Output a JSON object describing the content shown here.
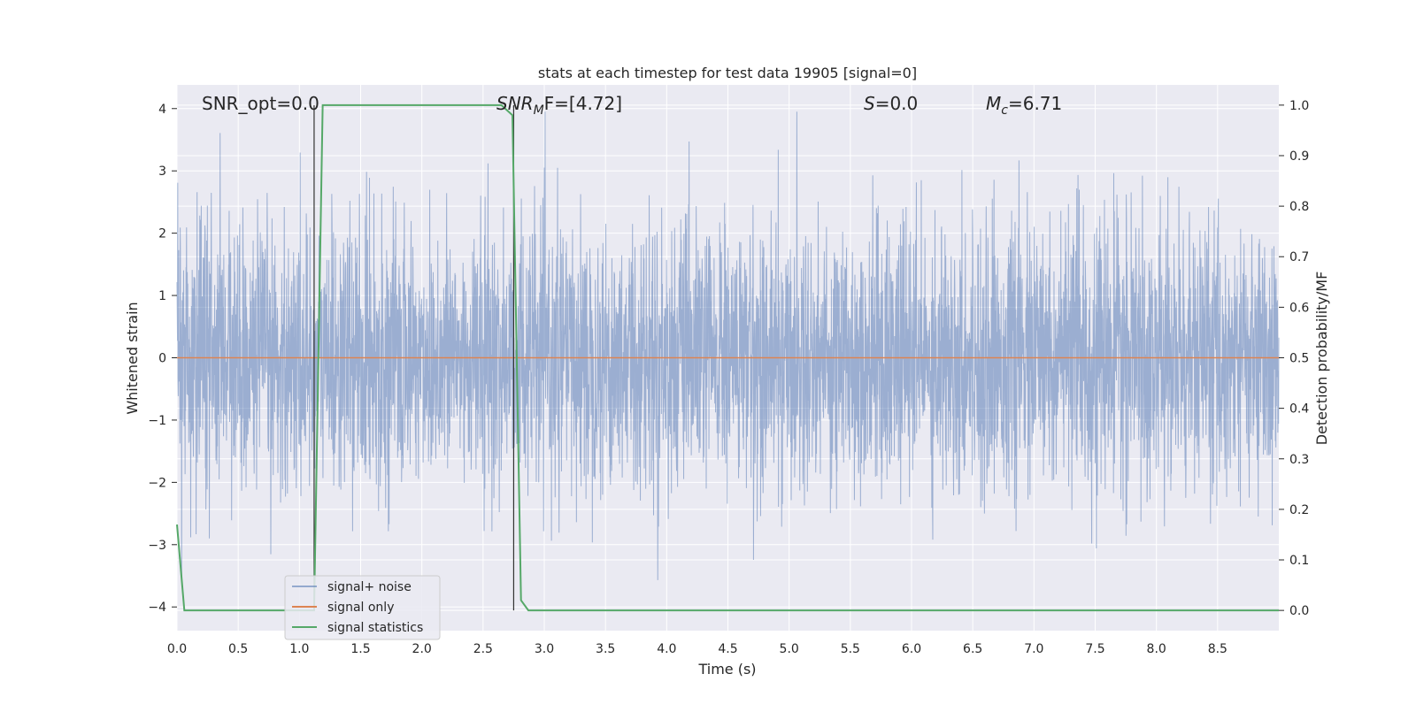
{
  "chart_data": {
    "type": "line",
    "title": "stats at each timestep for test data 19905 [signal=0]",
    "xlabel": "Time (s)",
    "ylabel_left": "Whitened strain",
    "ylabel_right": "Detection probability/MF",
    "xlim": [
      0.0,
      9.0
    ],
    "ylim_left": [
      -4.38,
      4.38
    ],
    "ylim_right": [
      -0.04,
      1.04
    ],
    "grid": true,
    "legend_position": "lower-left",
    "x_ticks": [
      "0.0",
      "0.5",
      "1.0",
      "1.5",
      "2.0",
      "2.5",
      "3.0",
      "3.5",
      "4.0",
      "4.5",
      "5.0",
      "5.5",
      "6.0",
      "6.5",
      "7.0",
      "7.5",
      "8.0",
      "8.5"
    ],
    "y_ticks_left": [
      "4",
      "3",
      "2",
      "1",
      "0",
      "−1",
      "−2",
      "−3",
      "−4"
    ],
    "y_ticks_right": [
      "1.0",
      "0.9",
      "0.8",
      "0.7",
      "0.6",
      "0.5",
      "0.4",
      "0.3",
      "0.2",
      "0.1",
      "0.0"
    ],
    "annotations": {
      "snr_opt": "SNR_opt=0.0",
      "snr_mf": "SNR",
      "snr_mf_sub": "M",
      "snr_mf_rest": "F=[4.72]",
      "s": "S",
      "s_rest": "=0.0",
      "mc": "M",
      "mc_sub": "c",
      "mc_rest": "=6.71"
    },
    "series": [
      {
        "name": "signal+ noise",
        "color": "#4c72b0",
        "axis": "left",
        "description_note": "noise band approximately within -4 to 4"
      },
      {
        "name": "signal only",
        "color": "#dd8452",
        "axis": "left",
        "constant": 0.0
      },
      {
        "name": "signal statistics",
        "color": "#55a868",
        "axis": "right",
        "x": [
          0.0,
          0.06,
          0.12,
          1.12,
          1.19,
          2.65,
          2.74,
          2.81,
          2.87,
          9.0
        ],
        "y": [
          0.17,
          0.0,
          0.0,
          0.0,
          1.0,
          1.0,
          0.98,
          0.02,
          0.0,
          0.0
        ]
      }
    ],
    "vertical_markers": [
      1.12,
      2.75
    ]
  }
}
